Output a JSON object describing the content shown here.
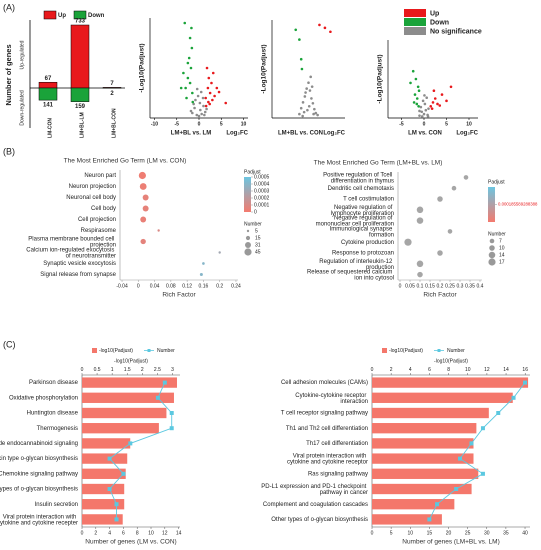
{
  "panels": [
    "(A)",
    "(B)",
    "(C)"
  ],
  "chart_data": [
    {
      "type": "updown",
      "ylabel": "Number of genes",
      "group_labels": [
        "Up-regulated",
        "Down-regulated"
      ],
      "categories": [
        "LM-CON",
        "LM+BL-LM",
        "LM+BL-CON"
      ],
      "series": [
        {
          "name": "Up",
          "color": "#e8191c",
          "values": [
            67,
            733,
            7
          ]
        },
        {
          "name": "Down",
          "color": "#1aa33a",
          "values": [
            141,
            159,
            2
          ]
        }
      ]
    },
    {
      "type": "scatter",
      "xlabel": "LM+BL vs. LM",
      "xlabel_right": "Log₂FC",
      "ylabel": "-Log10(Padjust)",
      "xlim": [
        -11,
        11
      ],
      "xticks": [
        -10,
        -5,
        0,
        5,
        10
      ],
      "ylim": [
        0,
        10
      ],
      "series": [
        {
          "color": "#e8191c",
          "x": [
            1.5,
            2,
            2.5,
            3,
            3.5,
            4,
            2.2,
            2.8,
            1.8,
            4.5,
            3.2,
            6,
            2.4,
            1.6,
            2.1
          ],
          "y": [
            2,
            3,
            2.5,
            1.8,
            2.2,
            3,
            4,
            3.5,
            5,
            2.6,
            4.5,
            1.5,
            1.4,
            1.2,
            1.6
          ]
        },
        {
          "color": "#1aa33a",
          "x": [
            -1.5,
            -2,
            -2.5,
            -3,
            -1.8,
            -2.2,
            -1.6,
            -2.8,
            -3.5,
            -2,
            -1.7,
            -4,
            -2.5,
            -1.4,
            -3.2
          ],
          "y": [
            2.5,
            3.5,
            4,
            3,
            5,
            6,
            7,
            2,
            4.5,
            8,
            9,
            3,
            5.5,
            1.6,
            9.5
          ]
        },
        {
          "color": "#8c8c8c",
          "x": [
            -1.5,
            -1,
            -0.5,
            0,
            0.3,
            0.6,
            1,
            1.4,
            -0.8,
            0.2,
            -0.2,
            0.9,
            -1.8,
            1.7,
            -1.2,
            0.5,
            -0.4,
            1.2
          ],
          "y": [
            0.5,
            1,
            0.3,
            0.2,
            0.8,
            0.4,
            1.2,
            0.6,
            1.8,
            1.5,
            2.2,
            2,
            0.7,
            0.9,
            1.4,
            2.6,
            2.9,
            0.3
          ]
        }
      ]
    },
    {
      "type": "scatter",
      "xlabel": "LM+BL vs. CON",
      "xlabel_right": "Log₂FC",
      "ylabel": "-Log10(Padjust)",
      "xlim": [
        -10,
        10
      ],
      "ylim": [
        0,
        10
      ],
      "series": [
        {
          "color": "#e8191c",
          "x": [
            3,
            4.5,
            6
          ],
          "y": [
            9.5,
            9.2,
            8.8
          ]
        },
        {
          "color": "#1aa33a",
          "x": [
            -2.5,
            -3.5,
            -2,
            -1.8
          ],
          "y": [
            8,
            9,
            6,
            5
          ]
        },
        {
          "color": "#8c8c8c",
          "x": [
            -2.5,
            -2,
            -1.5,
            -1,
            -0.5,
            0,
            0.4,
            0.8,
            1.2,
            1.6,
            2,
            2.5,
            -1.2,
            0.2,
            0.6,
            -0.3,
            1,
            -0.8,
            1.4,
            -1.6
          ],
          "y": [
            0.4,
            1,
            1.6,
            2.2,
            3,
            3.6,
            2.8,
            2,
            1.5,
            0.9,
            0.5,
            0.3,
            0.6,
            1.2,
            4.2,
            0.8,
            3.2,
            2.6,
            0.4,
            0.2
          ]
        }
      ]
    },
    {
      "type": "scatter",
      "xlabel": "LM vs. CON",
      "xlabel_right": "Log₂FC",
      "ylabel": "-Log10(Padjust)",
      "xlim": [
        -8,
        12
      ],
      "xticks": [
        -5,
        0,
        5,
        10
      ],
      "ylim": [
        0,
        10
      ],
      "legend": "top-right",
      "series": [
        {
          "name": "Up",
          "color": "#e8191c",
          "x": [
            1.5,
            2,
            2.5,
            3,
            4,
            5,
            2.2,
            3.5,
            6,
            1.8
          ],
          "y": [
            1.5,
            2,
            2.5,
            1.8,
            3,
            2.2,
            3.5,
            1.6,
            4,
            1.2
          ]
        },
        {
          "name": "Down",
          "color": "#1aa33a",
          "x": [
            -1.2,
            -1.5,
            -2,
            -1.3,
            -1.8,
            -2.4,
            -1.1,
            -1.6,
            -2.2,
            -3
          ],
          "y": [
            1.5,
            2.5,
            3,
            4,
            5,
            6,
            3.5,
            1.8,
            2,
            4.5
          ]
        },
        {
          "name": "No significance",
          "color": "#8c8c8c",
          "x": [
            -1,
            -0.5,
            0,
            0.4,
            0.8,
            -0.7,
            0.2,
            1,
            -0.2,
            0.6,
            -1,
            0.9,
            -0.4,
            0.1
          ],
          "y": [
            0.3,
            0.8,
            0.5,
            1,
            0.4,
            1.4,
            1.8,
            1.2,
            2.2,
            2.6,
            0.9,
            0.2,
            0.2,
            2.9
          ]
        }
      ]
    },
    {
      "type": "dot",
      "title": "The Most Enriched Go Term (LM vs. CON)",
      "xlabel": "Rich Factor",
      "categories": [
        "Neuron part",
        "Neuron projection",
        "Neuronal cell body",
        "Cell body",
        "Cell projection",
        "Respirasome",
        "Plasma membrane bounded cell projection",
        "Calcium ion-regulated exocytosis of neurotransmitter",
        "Synaptic vesicle exocytosis",
        "Signal release from synapse"
      ],
      "values": [
        0.01,
        0.012,
        0.018,
        0.018,
        0.012,
        0.05,
        0.012,
        0.2,
        0.16,
        0.155
      ],
      "counts": [
        45,
        40,
        31,
        31,
        30,
        5,
        25,
        5,
        6,
        8
      ],
      "padjust": [
        2e-05,
        3e-05,
        5e-05,
        5e-05,
        4e-05,
        0.0001,
        6e-05,
        0.0003,
        0.0004,
        0.0004
      ],
      "xlim": [
        -0.045,
        0.245
      ],
      "xticks": [
        -0.04,
        0,
        0.04,
        0.08,
        0.12,
        0.16,
        0.2,
        0.24
      ],
      "padjust_label": "Padjust",
      "padjust_ticks": [
        0.0005,
        0.0004,
        0.0003,
        0.0002,
        0.0001,
        0
      ],
      "colorbar": [
        "#6cc5e0",
        "#f47a6e"
      ],
      "count_label": "Number",
      "count_ticks": [
        5,
        15,
        31,
        45
      ]
    },
    {
      "type": "dot",
      "title": "The Most Enriched Go Term (LM+BL vs. LM)",
      "xlabel": "Rich Factor",
      "categories": [
        "Positive regulation of Tcell differentiation in thymus",
        "Dendritic cell chemotaxis",
        "T cell costimulation",
        "Negative regulation of lymphocyte proliferation",
        "Negative regulation of mononuclear cell proliferation",
        "Immunological synapse formation",
        "Cytokine production",
        "Response to protozoan",
        "Regulation of interleukin-12 production",
        "Release of sequestered calcium ion into cytosol"
      ],
      "values": [
        0.33,
        0.27,
        0.2,
        0.1,
        0.1,
        0.25,
        0.04,
        0.2,
        0.1,
        0.1
      ],
      "counts": [
        7,
        7,
        10,
        14,
        14,
        7,
        17,
        10,
        14,
        10
      ],
      "padjust": [
        0.000185589288388,
        0.000185589288388,
        0.000185589288388,
        0.000185589288388,
        0.000185589288388,
        0.000185589288388,
        0.000185589288388,
        0.000185589288388,
        0.000185589288388,
        0.000185589288388
      ],
      "xlim": [
        -0.01,
        0.41
      ],
      "xticks": [
        0,
        0.05,
        0.1,
        0.15,
        0.2,
        0.25,
        0.3,
        0.35,
        0.4
      ],
      "padjust_label": "Padjust",
      "padjust_ticks": [
        0.000185589288388
      ],
      "colorbar": [
        "#6cc5e0",
        "#f47a6e"
      ],
      "color": "#a6a6a6",
      "count_label": "Number",
      "count_ticks": [
        7,
        10,
        14,
        17
      ]
    },
    {
      "type": "barline",
      "xlabel": "-log10(Padjust)",
      "x2label": "Number of genes (LM vs. CON)",
      "categories": [
        "Parkinson disease",
        "Oxidative phosphorylation",
        "Huntington disease",
        "Thermogenesis",
        "Retrograde endocannabinoid signaling",
        "Mucin type o-glycan biosynthesis",
        "Chemokine signaling pathway",
        "Other types of o-glycan biosynthesis",
        "Insulin secretion",
        "Viral protein interaction with cytokine and cytokine recepter"
      ],
      "xlim": [
        0,
        3.25
      ],
      "xticks": [
        0,
        0.5,
        1,
        1.5,
        2,
        2.5,
        3
      ],
      "x2lim": [
        0,
        14.2
      ],
      "x2ticks": [
        0,
        2,
        4,
        6,
        8,
        10,
        12,
        14
      ],
      "series": [
        {
          "name": "-log10(Padjust)",
          "color": "#f4776b",
          "values": [
            3.15,
            3.05,
            2.8,
            2.55,
            1.6,
            1.5,
            1.45,
            1.4,
            1.4,
            1.35
          ]
        },
        {
          "name": "Number",
          "color": "#5bc8e0",
          "axis": "x2",
          "values": [
            12,
            11,
            13,
            13,
            7,
            4,
            6,
            4,
            5,
            5
          ]
        }
      ]
    },
    {
      "type": "barline",
      "xlabel": "-log10(Padjust)",
      "x2label": "Number of genes (LM+BL vs. LM)",
      "categories": [
        "Cell adhesion molecules (CAMs)",
        "Cytokine-cytokine receptor interaction",
        "T cell receptor signaling pathway",
        "Th1 and Th2 cell differentiation",
        "Th17 cell differentiation",
        "Viral protein interaction with cytokine and cytokine receptor",
        "Ras signaling pathway",
        "PD-L1 expression and PD-1 checkpoint pathway in cancer",
        "Complement and coagulation cascades",
        "Other types of o-glycan biosynthesis"
      ],
      "xlim": [
        0,
        16.5
      ],
      "xticks": [
        0,
        2,
        4,
        6,
        8,
        10,
        12,
        14,
        16
      ],
      "x2lim": [
        0,
        41.3
      ],
      "x2ticks": [
        0,
        5,
        10,
        15,
        20,
        25,
        30,
        35,
        40
      ],
      "series": [
        {
          "name": "-log10(Padjust)",
          "color": "#f4776b",
          "values": [
            16.3,
            14.7,
            12.2,
            10.9,
            10.6,
            10.6,
            11.1,
            10.4,
            8.6,
            7.3
          ]
        },
        {
          "name": "Number",
          "color": "#5bc8e0",
          "axis": "x2",
          "values": [
            40,
            37,
            33,
            29,
            26,
            23,
            29,
            22,
            17,
            15
          ]
        }
      ]
    }
  ]
}
